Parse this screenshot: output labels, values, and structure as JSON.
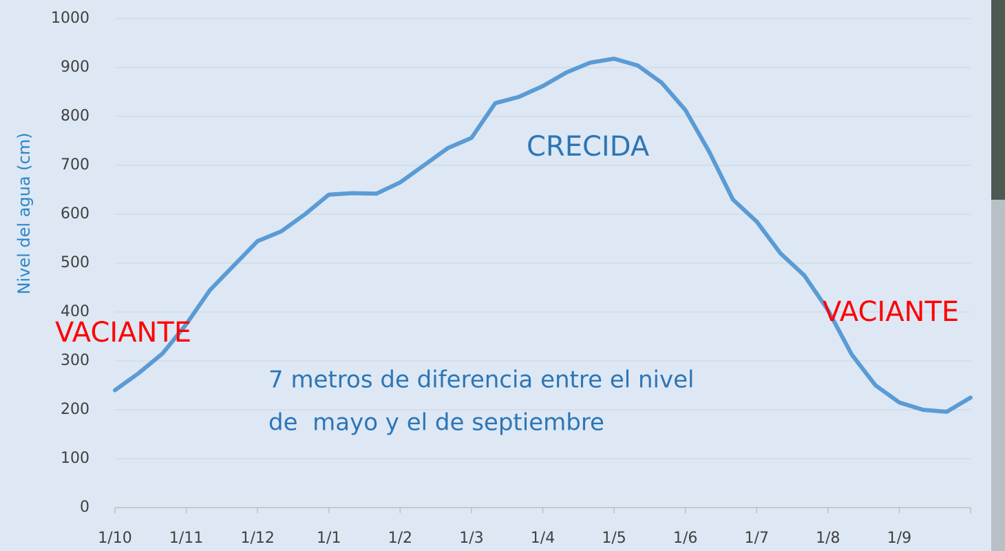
{
  "chart_data": {
    "type": "line",
    "y_label": "Nivel del agua (cm)",
    "categories": [
      "1/10",
      null,
      null,
      "1/11",
      null,
      null,
      "1/12",
      null,
      null,
      "1/1",
      null,
      null,
      "1/2",
      null,
      null,
      "1/3",
      null,
      null,
      "1/4",
      null,
      null,
      "1/5",
      null,
      null,
      "1/6",
      null,
      null,
      "1/7",
      null,
      null,
      "1/8",
      null,
      null,
      "1/9",
      null,
      null,
      null
    ],
    "series": [
      {
        "name": "Nivel del agua",
        "color": "#5b9bd5",
        "values": [
          240,
          275,
          315,
          375,
          445,
          495,
          545,
          565,
          600,
          640,
          643,
          642,
          665,
          700,
          735,
          756,
          827,
          840,
          862,
          890,
          910,
          918,
          904,
          869,
          813,
          728,
          630,
          585,
          520,
          475,
          404,
          313,
          250,
          215,
          200,
          196,
          225
        ]
      }
    ],
    "ylim": [
      0,
      1000
    ],
    "yticks": [
      0,
      100,
      200,
      300,
      400,
      500,
      600,
      700,
      800,
      900,
      1000
    ],
    "grid": true,
    "annotations": [
      "CRECIDA",
      "VACIANTE",
      "VACIANTE"
    ],
    "note": [
      "7 metros de diferencia entre el nivel",
      "de  mayo y el de septiembre"
    ]
  }
}
